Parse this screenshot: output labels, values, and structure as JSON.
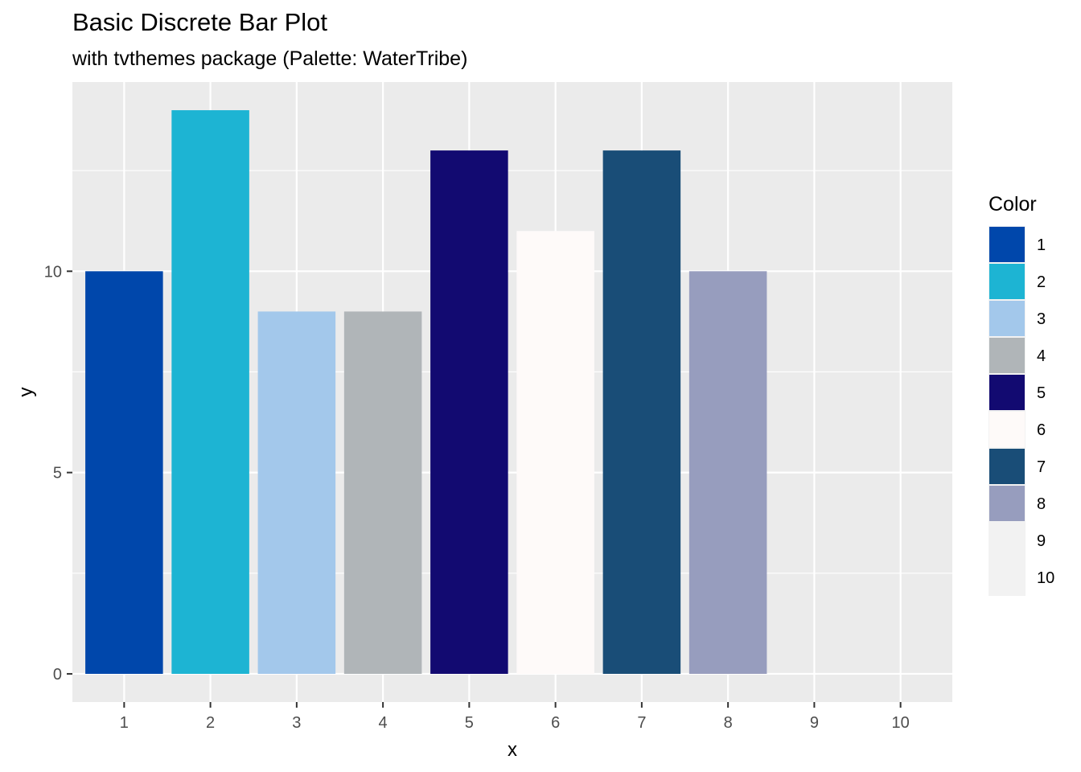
{
  "chart_data": {
    "type": "bar",
    "title": "Basic Discrete Bar Plot",
    "subtitle": "with tvthemes package (Palette: WaterTribe)",
    "xlabel": "x",
    "ylabel": "y",
    "categories": [
      "1",
      "2",
      "3",
      "4",
      "5",
      "6",
      "7",
      "8",
      "9",
      "10"
    ],
    "values": [
      10,
      14,
      9,
      9,
      13,
      11,
      13,
      10,
      0,
      0
    ],
    "ylim": [
      -0.7,
      14.7
    ],
    "yticks": [
      0,
      5,
      10
    ],
    "grid": true,
    "legend": {
      "title": "Color",
      "placement": "right",
      "labels": [
        "1",
        "2",
        "3",
        "4",
        "5",
        "6",
        "7",
        "8",
        "9",
        "10"
      ]
    },
    "colors": [
      "#0047AB",
      "#1DB4D3",
      "#A3C8EB",
      "#B0B5B8",
      "#120A71",
      "#FEFAF9",
      "#194D77",
      "#979DBE",
      "#F2F2F2",
      "#F2F2F2"
    ],
    "panel_background": "#EBEBEB"
  }
}
